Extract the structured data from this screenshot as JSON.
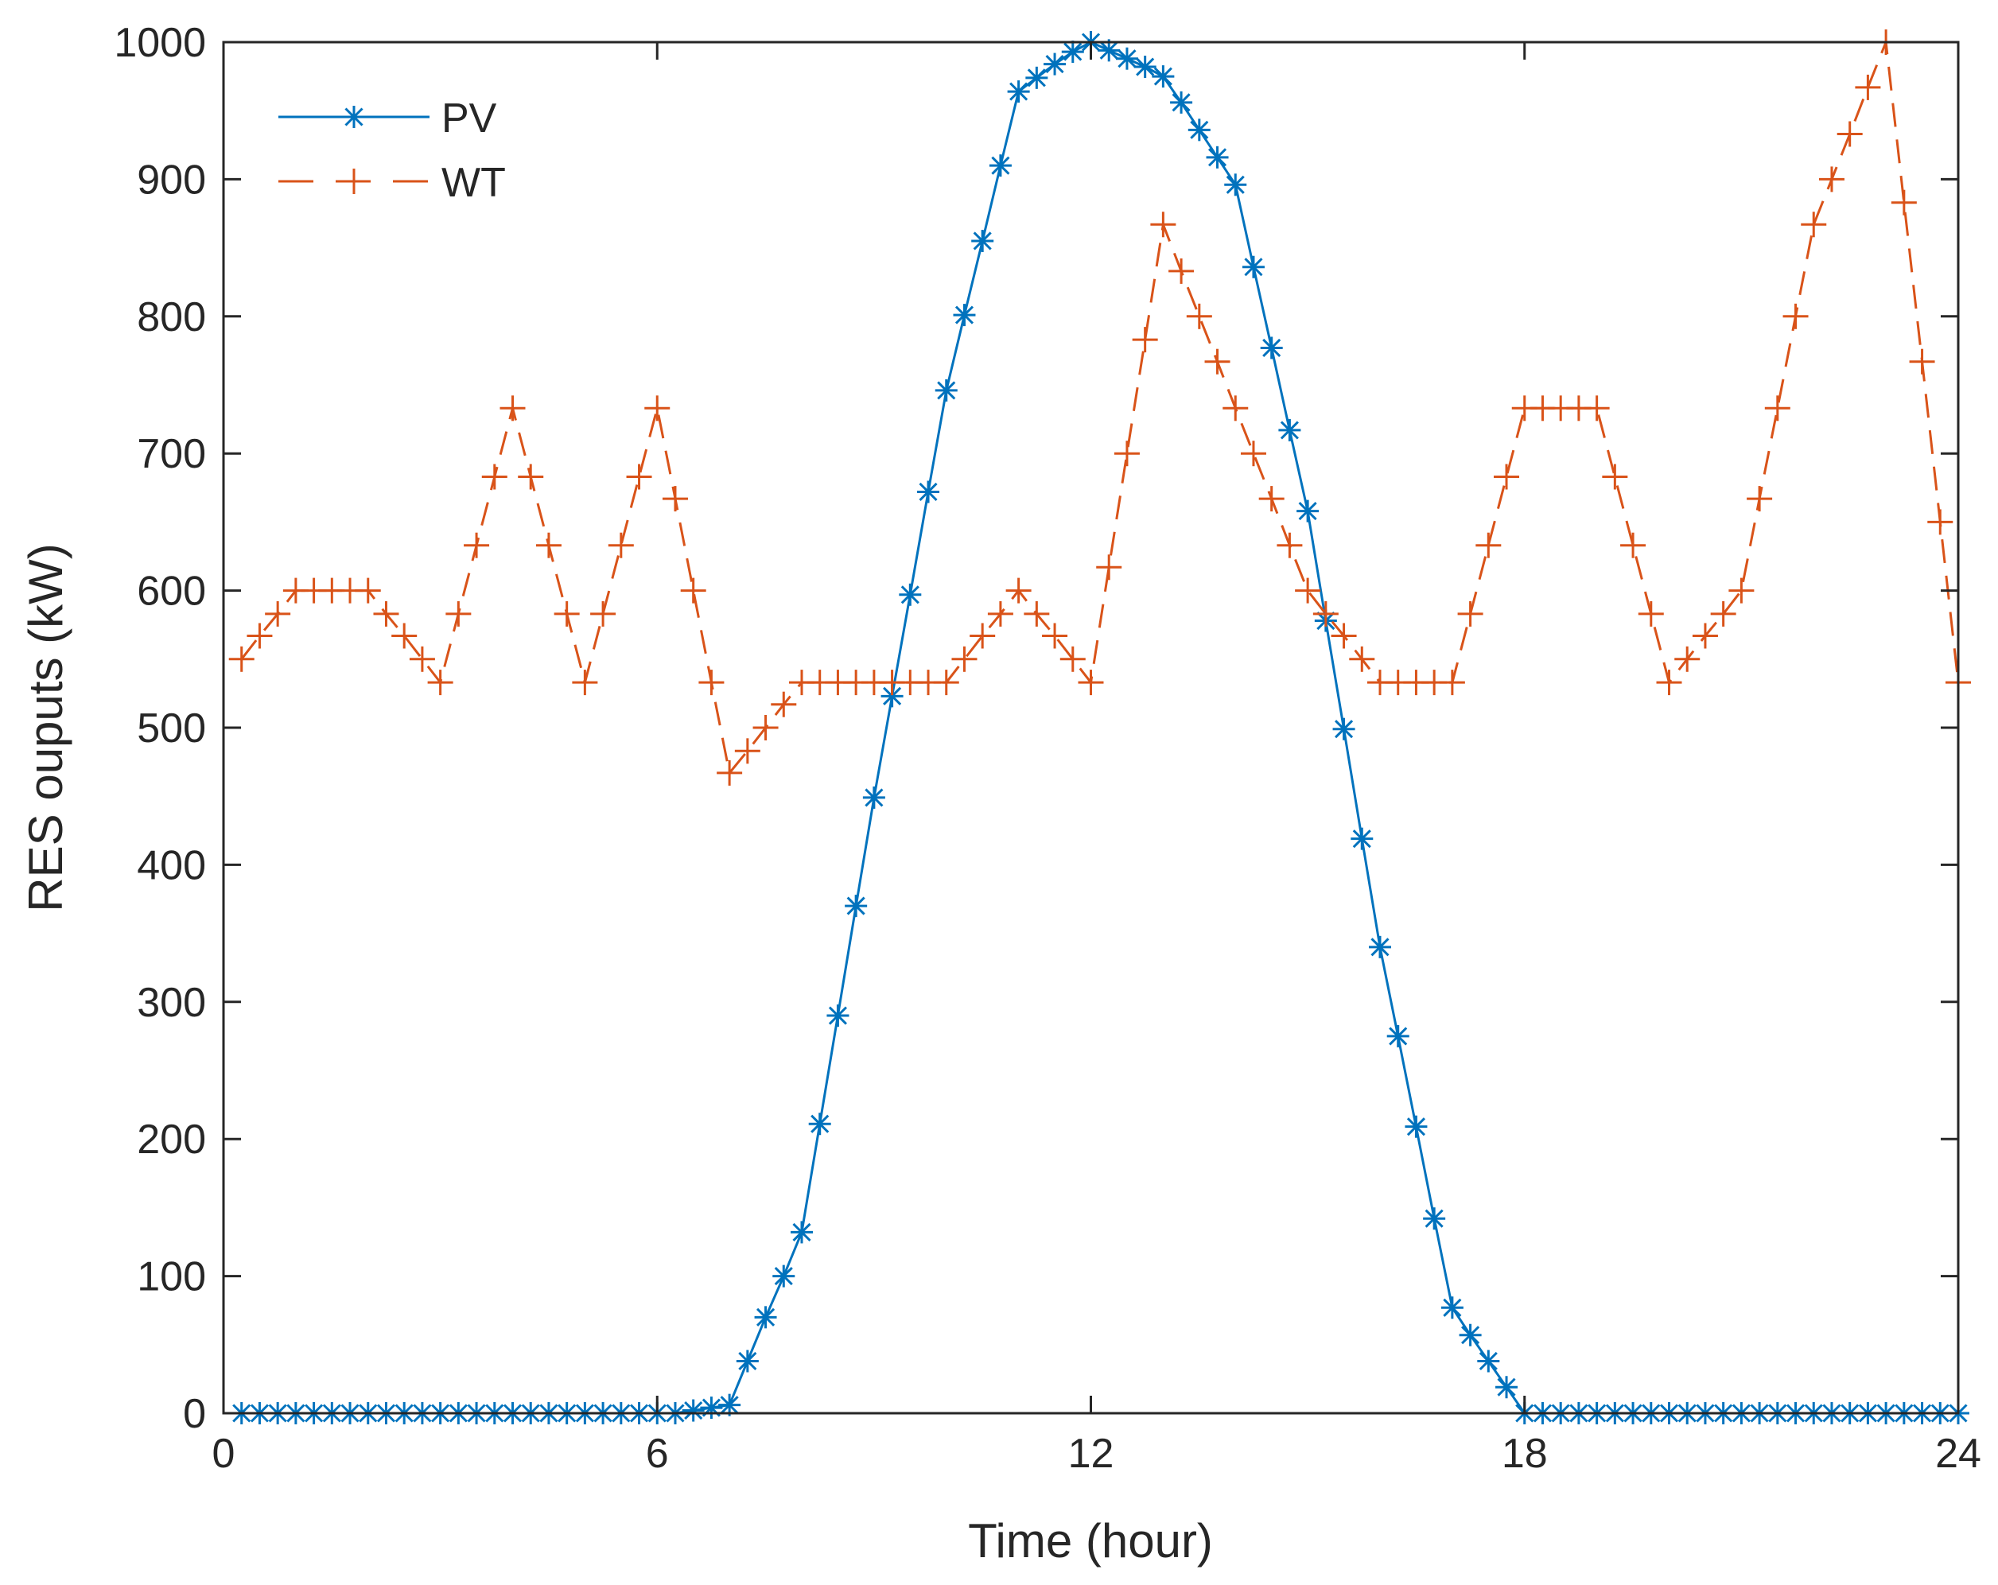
{
  "chart_data": {
    "type": "line",
    "title": "",
    "xlabel": "Time (hour)",
    "ylabel": "RES ouputs (kW)",
    "xlim": [
      0,
      24
    ],
    "ylim": [
      0,
      1000
    ],
    "xticks": [
      0,
      6,
      12,
      18,
      24
    ],
    "yticks": [
      0,
      100,
      200,
      300,
      400,
      500,
      600,
      700,
      800,
      900,
      1000
    ],
    "xtick_labels": [
      "0",
      "6",
      "12",
      "18",
      "24"
    ],
    "ytick_labels": [
      "0",
      "100",
      "200",
      "300",
      "400",
      "500",
      "600",
      "700",
      "800",
      "900",
      "1000"
    ],
    "grid": false,
    "legend_position": "top-left",
    "x": [
      0.25,
      0.5,
      0.75,
      1,
      1.25,
      1.5,
      1.75,
      2,
      2.25,
      2.5,
      2.75,
      3,
      3.25,
      3.5,
      3.75,
      4,
      4.25,
      4.5,
      4.75,
      5,
      5.25,
      5.5,
      5.75,
      6,
      6.25,
      6.5,
      6.75,
      7,
      7.25,
      7.5,
      7.75,
      8,
      8.25,
      8.5,
      8.75,
      9,
      9.25,
      9.5,
      9.75,
      10,
      10.25,
      10.5,
      10.75,
      11,
      11.25,
      11.5,
      11.75,
      12,
      12.25,
      12.5,
      12.75,
      13,
      13.25,
      13.5,
      13.75,
      14,
      14.25,
      14.5,
      14.75,
      15,
      15.25,
      15.5,
      15.75,
      16,
      16.25,
      16.5,
      16.75,
      17,
      17.25,
      17.5,
      17.75,
      18,
      18.25,
      18.5,
      18.75,
      19,
      19.25,
      19.5,
      19.75,
      20,
      20.25,
      20.5,
      20.75,
      21,
      21.25,
      21.5,
      21.75,
      22,
      22.25,
      22.5,
      22.75,
      23,
      23.25,
      23.5,
      23.75,
      24
    ],
    "series": [
      {
        "name": "PV",
        "color": "#0072BD",
        "line_style": "solid",
        "marker": "asterisk",
        "values": [
          0,
          0,
          0,
          0,
          0,
          0,
          0,
          0,
          0,
          0,
          0,
          0,
          0,
          0,
          0,
          0,
          0,
          0,
          0,
          0,
          0,
          0,
          0,
          0,
          0,
          2,
          4,
          6,
          38,
          70,
          100,
          132,
          211,
          290,
          370,
          449,
          523,
          597,
          672,
          746,
          801,
          855,
          910,
          964,
          974,
          984,
          993,
          1000,
          994,
          988,
          982,
          975,
          956,
          936,
          916,
          896,
          836,
          777,
          717,
          658,
          578,
          499,
          419,
          340,
          275,
          209,
          142,
          77,
          57,
          38,
          19,
          0,
          0,
          0,
          0,
          0,
          0,
          0,
          0,
          0,
          0,
          0,
          0,
          0,
          0,
          0,
          0,
          0,
          0,
          0,
          0,
          0,
          0,
          0,
          0,
          0
        ]
      },
      {
        "name": "WT",
        "color": "#D95319",
        "line_style": "dashed",
        "marker": "plus",
        "values": [
          550,
          567,
          583,
          600,
          600,
          600,
          600,
          600,
          583,
          567,
          550,
          533,
          583,
          633,
          683,
          733,
          683,
          633,
          583,
          533,
          583,
          633,
          683,
          733,
          667,
          600,
          533,
          467,
          483,
          500,
          517,
          533,
          533,
          533,
          533,
          533,
          533,
          533,
          533,
          533,
          550,
          567,
          583,
          600,
          583,
          567,
          550,
          533,
          617,
          700,
          783,
          867,
          833,
          800,
          767,
          733,
          700,
          667,
          633,
          600,
          583,
          567,
          550,
          533,
          533,
          533,
          533,
          533,
          583,
          633,
          683,
          733,
          733,
          733,
          733,
          733,
          683,
          633,
          583,
          533,
          550,
          567,
          583,
          600,
          667,
          733,
          800,
          867,
          900,
          933,
          967,
          1000,
          883,
          767,
          650,
          533
        ]
      }
    ]
  }
}
